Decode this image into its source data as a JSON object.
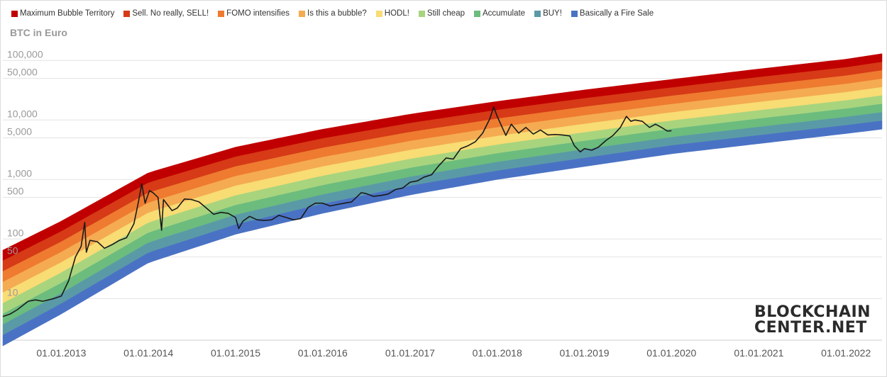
{
  "legend": {
    "items": [
      {
        "label": "Maximum Bubble Territory",
        "color": "#c00000"
      },
      {
        "label": "Sell. No really, SELL!",
        "color": "#d63a16"
      },
      {
        "label": "FOMO intensifies",
        "color": "#ee7b30"
      },
      {
        "label": "Is this a bubble?",
        "color": "#f5ab52"
      },
      {
        "label": "HODL!",
        "color": "#f8dc74"
      },
      {
        "label": "Still cheap",
        "color": "#a8d47e"
      },
      {
        "label": "Accumulate",
        "color": "#6cbc7e"
      },
      {
        "label": "BUY!",
        "color": "#5a9aa6"
      },
      {
        "label": "Basically a Fire Sale",
        "color": "#4a72c4"
      }
    ]
  },
  "logo": {
    "line1": "BLOCKCHAIN",
    "line2": "CENTER.NET"
  },
  "chart_data": {
    "type": "area",
    "title": "BTC in Euro",
    "y_scale": "log",
    "ylim": [
      2,
      200000
    ],
    "xlim": [
      "2012-05-01",
      "2022-06-01"
    ],
    "grid": true,
    "legend_position": "top",
    "y_ticks": [
      {
        "value": 10,
        "label": "10"
      },
      {
        "value": 50,
        "label": "50"
      },
      {
        "value": 100,
        "label": "100"
      },
      {
        "value": 500,
        "label": "500"
      },
      {
        "value": 1000,
        "label": "1,000"
      },
      {
        "value": 5000,
        "label": "5,000"
      },
      {
        "value": 10000,
        "label": "10,000"
      },
      {
        "value": 50000,
        "label": "50,000"
      },
      {
        "value": 100000,
        "label": "100,000"
      }
    ],
    "x_ticks": [
      {
        "date": "2013-01-01",
        "label": "01.01.2013"
      },
      {
        "date": "2014-01-01",
        "label": "01.01.2014"
      },
      {
        "date": "2015-01-01",
        "label": "01.01.2015"
      },
      {
        "date": "2016-01-01",
        "label": "01.01.2016"
      },
      {
        "date": "2017-01-01",
        "label": "01.01.2017"
      },
      {
        "date": "2018-01-01",
        "label": "01.01.2018"
      },
      {
        "date": "2019-01-01",
        "label": "01.01.2019"
      },
      {
        "date": "2020-01-01",
        "label": "01.01.2020"
      },
      {
        "date": "2021-01-01",
        "label": "01.01.2021"
      },
      {
        "date": "2022-01-01",
        "label": "01.01.2022"
      }
    ],
    "bands": {
      "dates": [
        "2012-05-01",
        "2013-01-01",
        "2014-01-01",
        "2015-01-01",
        "2016-01-01",
        "2017-01-01",
        "2018-01-01",
        "2019-01-01",
        "2020-01-01",
        "2021-01-01",
        "2022-01-01",
        "2022-06-01"
      ],
      "top_values": [
        65,
        200,
        1300,
        3500,
        7000,
        12500,
        20500,
        32000,
        48000,
        72000,
        105000,
        130000
      ],
      "bottom_values": [
        1.6,
        5.5,
        40,
        120,
        270,
        550,
        1000,
        1650,
        2700,
        4000,
        5900,
        7000
      ],
      "series": [
        {
          "name": "Maximum Bubble Territory",
          "color": "#c00000"
        },
        {
          "name": "Sell. No really, SELL!",
          "color": "#d63a16"
        },
        {
          "name": "FOMO intensifies",
          "color": "#ee7b30"
        },
        {
          "name": "Is this a bubble?",
          "color": "#f5ab52"
        },
        {
          "name": "HODL!",
          "color": "#f8dc74"
        },
        {
          "name": "Still cheap",
          "color": "#a8d47e"
        },
        {
          "name": "Accumulate",
          "color": "#6cbc7e"
        },
        {
          "name": "BUY!",
          "color": "#5a9aa6"
        },
        {
          "name": "Basically a Fire Sale",
          "color": "#4a72c4"
        }
      ]
    },
    "price": {
      "color": "#1a1a1a",
      "points": [
        [
          "2012-05-01",
          5
        ],
        [
          "2012-06-01",
          5.5
        ],
        [
          "2012-07-01",
          6.5
        ],
        [
          "2012-08-15",
          9
        ],
        [
          "2012-09-15",
          9.5
        ],
        [
          "2012-10-15",
          9
        ],
        [
          "2012-12-01",
          10
        ],
        [
          "2013-01-01",
          11
        ],
        [
          "2013-02-01",
          20
        ],
        [
          "2013-03-01",
          50
        ],
        [
          "2013-03-25",
          75
        ],
        [
          "2013-04-09",
          190
        ],
        [
          "2013-04-16",
          60
        ],
        [
          "2013-05-01",
          95
        ],
        [
          "2013-06-01",
          90
        ],
        [
          "2013-07-01",
          70
        ],
        [
          "2013-08-01",
          80
        ],
        [
          "2013-09-01",
          95
        ],
        [
          "2013-10-01",
          105
        ],
        [
          "2013-11-01",
          180
        ],
        [
          "2013-11-20",
          420
        ],
        [
          "2013-12-04",
          850
        ],
        [
          "2013-12-18",
          400
        ],
        [
          "2014-01-05",
          650
        ],
        [
          "2014-01-20",
          600
        ],
        [
          "2014-02-10",
          500
        ],
        [
          "2014-02-25",
          140
        ],
        [
          "2014-03-05",
          460
        ],
        [
          "2014-04-10",
          300
        ],
        [
          "2014-05-01",
          330
        ],
        [
          "2014-06-01",
          470
        ],
        [
          "2014-07-01",
          460
        ],
        [
          "2014-08-01",
          420
        ],
        [
          "2014-09-01",
          330
        ],
        [
          "2014-10-01",
          260
        ],
        [
          "2014-11-01",
          280
        ],
        [
          "2014-12-01",
          270
        ],
        [
          "2015-01-01",
          230
        ],
        [
          "2015-01-14",
          150
        ],
        [
          "2015-02-01",
          200
        ],
        [
          "2015-03-01",
          240
        ],
        [
          "2015-04-01",
          210
        ],
        [
          "2015-05-01",
          205
        ],
        [
          "2015-06-01",
          210
        ],
        [
          "2015-07-01",
          250
        ],
        [
          "2015-08-01",
          230
        ],
        [
          "2015-09-01",
          210
        ],
        [
          "2015-10-01",
          220
        ],
        [
          "2015-11-01",
          340
        ],
        [
          "2015-12-01",
          400
        ],
        [
          "2016-01-01",
          400
        ],
        [
          "2016-02-01",
          360
        ],
        [
          "2016-03-01",
          380
        ],
        [
          "2016-04-01",
          400
        ],
        [
          "2016-05-01",
          420
        ],
        [
          "2016-06-10",
          600
        ],
        [
          "2016-07-01",
          580
        ],
        [
          "2016-08-01",
          520
        ],
        [
          "2016-09-01",
          540
        ],
        [
          "2016-10-01",
          570
        ],
        [
          "2016-11-01",
          680
        ],
        [
          "2016-12-01",
          720
        ],
        [
          "2017-01-01",
          900
        ],
        [
          "2017-02-01",
          950
        ],
        [
          "2017-03-01",
          1100
        ],
        [
          "2017-04-01",
          1200
        ],
        [
          "2017-05-01",
          1700
        ],
        [
          "2017-06-01",
          2300
        ],
        [
          "2017-07-01",
          2200
        ],
        [
          "2017-08-01",
          3300
        ],
        [
          "2017-09-01",
          3700
        ],
        [
          "2017-10-01",
          4300
        ],
        [
          "2017-11-01",
          6000
        ],
        [
          "2017-12-01",
          10500
        ],
        [
          "2017-12-17",
          16500
        ],
        [
          "2018-01-01",
          11500
        ],
        [
          "2018-02-06",
          5500
        ],
        [
          "2018-03-01",
          8500
        ],
        [
          "2018-04-01",
          6000
        ],
        [
          "2018-05-01",
          7500
        ],
        [
          "2018-06-01",
          5800
        ],
        [
          "2018-07-01",
          6800
        ],
        [
          "2018-08-01",
          5600
        ],
        [
          "2018-09-01",
          5700
        ],
        [
          "2018-10-01",
          5600
        ],
        [
          "2018-11-01",
          5400
        ],
        [
          "2018-11-20",
          3700
        ],
        [
          "2018-12-15",
          2900
        ],
        [
          "2019-01-01",
          3300
        ],
        [
          "2019-02-01",
          3100
        ],
        [
          "2019-03-01",
          3500
        ],
        [
          "2019-04-01",
          4500
        ],
        [
          "2019-05-01",
          5500
        ],
        [
          "2019-06-01",
          7500
        ],
        [
          "2019-06-26",
          11500
        ],
        [
          "2019-07-15",
          9500
        ],
        [
          "2019-08-01",
          10000
        ],
        [
          "2019-09-01",
          9500
        ],
        [
          "2019-10-01",
          7500
        ],
        [
          "2019-10-26",
          8500
        ],
        [
          "2019-11-20",
          7500
        ],
        [
          "2019-12-15",
          6500
        ],
        [
          "2020-01-01",
          6600
        ]
      ]
    }
  }
}
